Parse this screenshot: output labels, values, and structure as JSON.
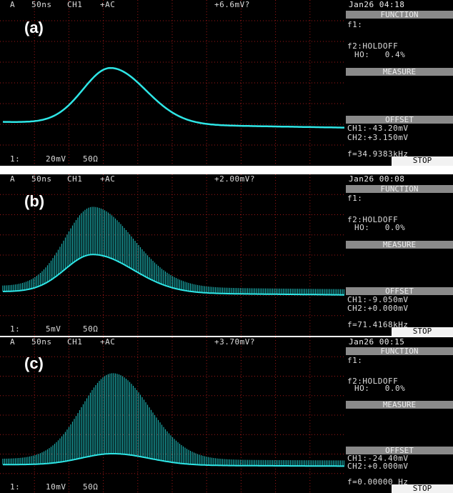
{
  "panels": [
    {
      "label": "(a)",
      "channel": "A",
      "timebase": "50ns",
      "source": "CH1",
      "coupling": "+AC",
      "trigger": "+6.6mV?",
      "date": "Jan26 04:18",
      "function": "FUNCTION",
      "f1": "f1:",
      "f2": "f2:HOLDOFF",
      "holdoff": "HO:   0.4%",
      "measure": "MEASURE",
      "offset": "OFFSET",
      "ch1_offset": "CH1:-43.20mV",
      "ch2_offset": "CH2:+3.150mV",
      "frequency": "f=34.9383kHz",
      "status": "STOP",
      "scale": "1:",
      "volts": "20mV",
      "impedance": "50Ω"
    },
    {
      "label": "(b)",
      "channel": "A",
      "timebase": "50ns",
      "source": "CH1",
      "coupling": "+AC",
      "trigger": "+2.00mV?",
      "date": "Jan26 00:08",
      "function": "FUNCTION",
      "f1": "f1:",
      "f2": "f2:HOLDOFF",
      "holdoff": "HO:   0.0%",
      "measure": "MEASURE",
      "offset": "OFFSET",
      "ch1_offset": "CH1:-9.050mV",
      "ch2_offset": "CH2:+0.000mV",
      "frequency": "f=71.4168kHz",
      "status": "STOP",
      "scale": "1:",
      "volts": "5mV",
      "impedance": "50Ω"
    },
    {
      "label": "(c)",
      "channel": "A",
      "timebase": "50ns",
      "source": "CH1",
      "coupling": "+AC",
      "trigger": "+3.70mV?",
      "date": "Jan26 00:15",
      "function": "FUNCTION",
      "f1": "f1:",
      "f2": "f2:HOLDOFF",
      "holdoff": "HO:   0.0%",
      "measure": "MEASURE",
      "offset": "OFFSET",
      "ch1_offset": "CH1:-24.40mV",
      "ch2_offset": "CH2:+0.000mV",
      "frequency": "f=0.00000 Hz",
      "status": "STOP",
      "scale": "1:",
      "volts": "10mV",
      "impedance": "50Ω"
    }
  ]
}
